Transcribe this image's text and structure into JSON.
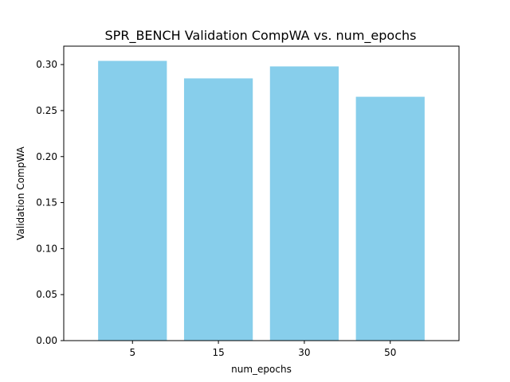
{
  "chart_data": {
    "type": "bar",
    "title": "SPR_BENCH Validation CompWA vs. num_epochs",
    "xlabel": "num_epochs",
    "ylabel": "Validation CompWA",
    "categories": [
      "5",
      "15",
      "30",
      "50"
    ],
    "values": [
      0.304,
      0.285,
      0.298,
      0.265
    ],
    "ylim": [
      0,
      0.32
    ],
    "yticks": [
      "0.00",
      "0.05",
      "0.10",
      "0.15",
      "0.20",
      "0.25",
      "0.30"
    ],
    "bar_color": "#87ceeb",
    "grid": false,
    "legend": "none"
  }
}
